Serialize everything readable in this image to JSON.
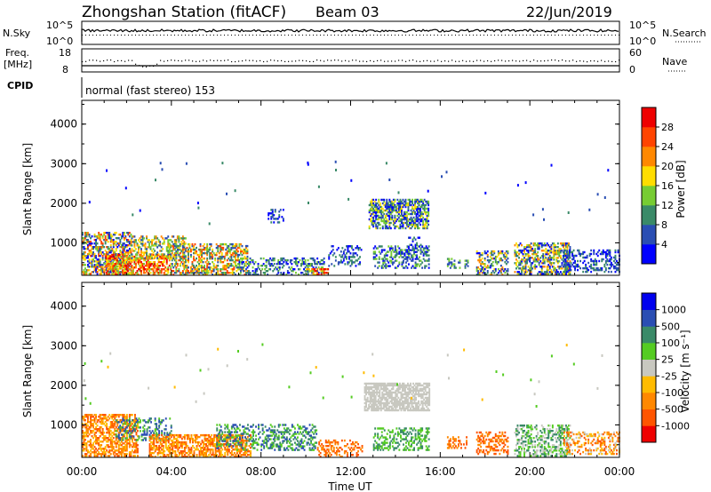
{
  "header": {
    "station": "Zhongshan Station (fitACF)",
    "beam": "Beam 03",
    "date": "22/Jun/2019"
  },
  "nsky_panel": {
    "label_left": "N.Sky",
    "label_right": "N.Search",
    "ticks_left": [
      "10^5",
      "10^0"
    ],
    "ticks_right": [
      "10^5",
      "10^0"
    ]
  },
  "freq_panel": {
    "label_left_line1": "Freq.",
    "label_left_line2": "[MHz]",
    "label_right": "Nave",
    "ticks_left": [
      "18",
      "8"
    ],
    "ticks_right": [
      "60",
      "0"
    ]
  },
  "cpid": {
    "label": "CPID",
    "mode": "normal (fast stereo) 153"
  },
  "chart_data": [
    {
      "type": "heatmap",
      "name": "power",
      "ylabel": "Slant Range [km]",
      "yticks": [
        "1000",
        "2000",
        "3000",
        "4000"
      ],
      "ylim": [
        180,
        4600
      ],
      "xlim_hours": [
        0,
        24
      ],
      "colorbar_label": "Power [dB]",
      "colorbar_ticks": [
        "4",
        "8",
        "12",
        "16",
        "20",
        "24",
        "28"
      ],
      "colors": [
        "#0000ff",
        "#2a4eb3",
        "#3a8a68",
        "#77cc33",
        "#ffdd00",
        "#ff8800",
        "#ff4400",
        "#ee0000"
      ],
      "blobs": [
        {
          "t0": 0.0,
          "t1": 2.2,
          "r0": 200,
          "r1": 1250,
          "cmin": 0,
          "cmax": 6,
          "dens": 0.55
        },
        {
          "t0": 1.0,
          "t1": 4.0,
          "r0": 180,
          "r1": 700,
          "cmin": 3,
          "cmax": 7,
          "dens": 0.6
        },
        {
          "t0": 2.2,
          "t1": 4.6,
          "r0": 600,
          "r1": 1150,
          "cmin": 1,
          "cmax": 5,
          "dens": 0.45
        },
        {
          "t0": 4.0,
          "t1": 7.4,
          "r0": 180,
          "r1": 950,
          "cmin": 1,
          "cmax": 6,
          "dens": 0.5
        },
        {
          "t0": 7.0,
          "t1": 10.8,
          "r0": 180,
          "r1": 600,
          "cmin": 0,
          "cmax": 3,
          "dens": 0.35
        },
        {
          "t0": 8.3,
          "t1": 9.0,
          "r0": 1500,
          "r1": 1850,
          "cmin": 0,
          "cmax": 2,
          "dens": 0.35
        },
        {
          "t0": 10.0,
          "t1": 11.0,
          "r0": 180,
          "r1": 350,
          "cmin": 3,
          "cmax": 7,
          "dens": 0.5
        },
        {
          "t0": 11.0,
          "t1": 12.5,
          "r0": 400,
          "r1": 900,
          "cmin": 0,
          "cmax": 2,
          "dens": 0.25
        },
        {
          "t0": 12.8,
          "t1": 15.5,
          "r0": 1350,
          "r1": 2100,
          "cmin": 0,
          "cmax": 4,
          "dens": 0.6
        },
        {
          "t0": 13.0,
          "t1": 15.5,
          "r0": 350,
          "r1": 900,
          "cmin": 0,
          "cmax": 3,
          "dens": 0.45
        },
        {
          "t0": 14.5,
          "t1": 15.2,
          "r0": 750,
          "r1": 1150,
          "cmin": 0,
          "cmax": 2,
          "dens": 0.35
        },
        {
          "t0": 16.3,
          "t1": 17.2,
          "r0": 350,
          "r1": 600,
          "cmin": 1,
          "cmax": 3,
          "dens": 0.3
        },
        {
          "t0": 17.6,
          "t1": 19.0,
          "r0": 180,
          "r1": 800,
          "cmin": 0,
          "cmax": 5,
          "dens": 0.4
        },
        {
          "t0": 19.3,
          "t1": 21.8,
          "r0": 200,
          "r1": 1000,
          "cmin": 0,
          "cmax": 5,
          "dens": 0.55
        },
        {
          "t0": 21.5,
          "t1": 24.0,
          "r0": 250,
          "r1": 800,
          "cmin": 0,
          "cmax": 2,
          "dens": 0.35
        }
      ]
    },
    {
      "type": "heatmap",
      "name": "velocity",
      "ylabel": "Slant Range [km]",
      "yticks": [
        "1000",
        "2000",
        "3000",
        "4000"
      ],
      "ylim": [
        180,
        4600
      ],
      "xlim_hours": [
        0,
        24
      ],
      "xticks": [
        "00:00",
        "04:00",
        "08:00",
        "12:00",
        "16:00",
        "20:00",
        "00:00"
      ],
      "xlabel": "Time UT",
      "colorbar_label": "Velocity [m s⁻¹]",
      "colorbar_ticks": [
        "-1000",
        "-500",
        "-100",
        "-25",
        "25",
        "100",
        "500",
        "1000"
      ],
      "colors": [
        "#ee0000",
        "#ff5500",
        "#ff8800",
        "#ffbb00",
        "#c8c8c0",
        "#55cc22",
        "#3a8a68",
        "#2a4eb3",
        "#0000ee"
      ],
      "blobs": [
        {
          "t0": 0.0,
          "t1": 2.5,
          "r0": 200,
          "r1": 1250,
          "cmin": 1,
          "cmax": 3,
          "dens": 0.55
        },
        {
          "t0": 1.5,
          "t1": 4.0,
          "r0": 600,
          "r1": 1150,
          "cmin": 5,
          "cmax": 7,
          "dens": 0.35
        },
        {
          "t0": 3.0,
          "t1": 7.5,
          "r0": 180,
          "r1": 750,
          "cmin": 1,
          "cmax": 3,
          "dens": 0.6
        },
        {
          "t0": 6.0,
          "t1": 10.5,
          "r0": 350,
          "r1": 1000,
          "cmin": 5,
          "cmax": 7,
          "dens": 0.35
        },
        {
          "t0": 10.5,
          "t1": 12.5,
          "r0": 180,
          "r1": 600,
          "cmin": 1,
          "cmax": 2,
          "dens": 0.3
        },
        {
          "t0": 12.6,
          "t1": 15.5,
          "r0": 1350,
          "r1": 2050,
          "cmin": 4,
          "cmax": 4,
          "dens": 0.7
        },
        {
          "t0": 13.0,
          "t1": 15.5,
          "r0": 350,
          "r1": 900,
          "cmin": 5,
          "cmax": 6,
          "dens": 0.4
        },
        {
          "t0": 16.3,
          "t1": 17.2,
          "r0": 400,
          "r1": 700,
          "cmin": 1,
          "cmax": 2,
          "dens": 0.3
        },
        {
          "t0": 17.6,
          "t1": 19.0,
          "r0": 250,
          "r1": 800,
          "cmin": 1,
          "cmax": 2,
          "dens": 0.4
        },
        {
          "t0": 19.3,
          "t1": 21.8,
          "r0": 200,
          "r1": 1000,
          "cmin": 4,
          "cmax": 6,
          "dens": 0.45
        },
        {
          "t0": 21.5,
          "t1": 24.0,
          "r0": 250,
          "r1": 800,
          "cmin": 1,
          "cmax": 4,
          "dens": 0.35
        }
      ]
    }
  ]
}
